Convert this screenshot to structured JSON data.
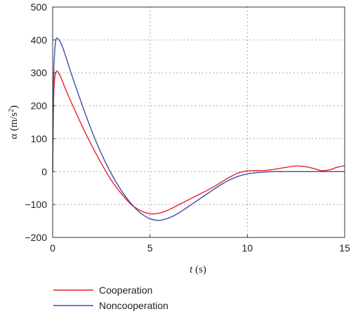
{
  "chart_data": {
    "type": "line",
    "xlabel": {
      "italic": "t",
      "unit": " (s)"
    },
    "ylabel": {
      "symbol": "α",
      "unit_prefix": " (m/s",
      "unit_exp": "2",
      "unit_suffix": ")"
    },
    "xlim": [
      0,
      15
    ],
    "ylim": [
      -200,
      500
    ],
    "xticks": [
      0,
      5,
      10,
      15
    ],
    "yticks": [
      -200,
      -100,
      0,
      100,
      200,
      300,
      400,
      500
    ],
    "grid": "dotted",
    "legend_position": "bottom-left, below plot",
    "series": [
      {
        "name": "Cooperation",
        "color": "#e8202a",
        "x": [
          0,
          0.05,
          0.1,
          0.15,
          0.2,
          0.25,
          0.3,
          0.4,
          0.5,
          0.7,
          1.0,
          1.5,
          2.0,
          2.5,
          3.0,
          3.5,
          4.0,
          4.5,
          5.0,
          5.5,
          6.0,
          6.5,
          7.0,
          7.5,
          8.0,
          8.5,
          9.0,
          9.5,
          10.0,
          10.5,
          11.0,
          11.5,
          12.0,
          12.5,
          13.0,
          13.5,
          13.8,
          14.2,
          14.6,
          15.0
        ],
        "y": [
          0,
          220,
          280,
          300,
          305,
          305,
          300,
          290,
          275,
          245,
          205,
          140,
          80,
          25,
          -25,
          -65,
          -98,
          -118,
          -128,
          -126,
          -115,
          -100,
          -85,
          -70,
          -55,
          -38,
          -20,
          -5,
          2,
          3,
          4,
          8,
          13,
          17,
          15,
          8,
          3,
          5,
          13,
          18
        ]
      },
      {
        "name": "Noncooperation",
        "color": "#3a4fa8",
        "x": [
          0,
          0.05,
          0.1,
          0.15,
          0.2,
          0.25,
          0.3,
          0.35,
          0.4,
          0.5,
          0.7,
          1.0,
          1.5,
          2.0,
          2.5,
          3.0,
          3.5,
          4.0,
          4.5,
          5.0,
          5.5,
          6.0,
          6.5,
          7.0,
          7.5,
          8.0,
          8.5,
          9.0,
          9.5,
          10.0,
          10.5,
          11.0,
          11.5,
          12.0,
          12.5,
          13.0,
          13.5,
          14.0,
          14.5,
          15.0
        ],
        "y": [
          0,
          280,
          360,
          395,
          405,
          405,
          402,
          398,
          393,
          380,
          345,
          290,
          205,
          125,
          55,
          -5,
          -55,
          -95,
          -125,
          -143,
          -148,
          -140,
          -125,
          -105,
          -85,
          -65,
          -45,
          -28,
          -15,
          -7,
          -3,
          -1,
          0,
          0,
          0,
          0,
          0,
          0,
          0,
          0
        ]
      }
    ]
  }
}
